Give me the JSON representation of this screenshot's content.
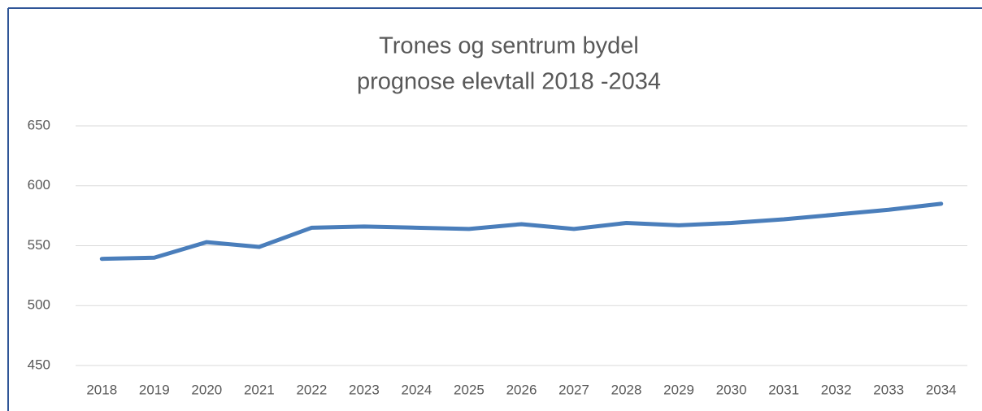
{
  "chart_data": {
    "type": "line",
    "title": [
      "Trones og sentrum bydel",
      "prognose elevtall 2018 -2034"
    ],
    "categories": [
      "2018",
      "2019",
      "2020",
      "2021",
      "2022",
      "2023",
      "2024",
      "2025",
      "2026",
      "2027",
      "2028",
      "2029",
      "2030",
      "2031",
      "2032",
      "2033",
      "2034"
    ],
    "series": [
      {
        "color": "#4a7ebb",
        "values": [
          539,
          540,
          553,
          549,
          565,
          566,
          565,
          564,
          568,
          564,
          569,
          567,
          569,
          572,
          576,
          580,
          585
        ]
      }
    ],
    "ylim": [
      450,
      650
    ],
    "yticks": [
      450,
      500,
      550,
      600,
      650
    ],
    "grid": true
  }
}
